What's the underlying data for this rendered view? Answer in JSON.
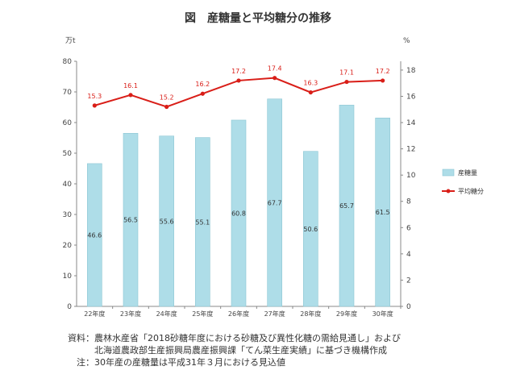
{
  "title": "図　産糖量と平均糖分の推移",
  "chart_data": {
    "type": "bar+line",
    "categories": [
      "22年度",
      "23年度",
      "24年度",
      "25年度",
      "26年度",
      "27年度",
      "28年度",
      "29年度",
      "30年度"
    ],
    "series": [
      {
        "name": "産糖量",
        "type": "bar",
        "axis": "left",
        "color": "#aedde8",
        "values": [
          46.6,
          56.5,
          55.6,
          55.1,
          60.8,
          67.7,
          50.6,
          65.7,
          61.5
        ]
      },
      {
        "name": "平均糖分",
        "type": "line",
        "axis": "right",
        "color": "#d91e18",
        "values": [
          15.3,
          16.1,
          15.2,
          16.2,
          17.2,
          17.4,
          16.3,
          17.1,
          17.2
        ]
      }
    ],
    "y_left": {
      "unit": "万t",
      "range": [
        0,
        80
      ],
      "ticks": [
        "0",
        "10",
        "20",
        "30",
        "40",
        "50",
        "60",
        "70",
        "80"
      ]
    },
    "y_right": {
      "unit": "%",
      "range": [
        0,
        18.67
      ],
      "ticks": [
        "0",
        "2",
        "4",
        "6",
        "8",
        "10",
        "12",
        "14",
        "16",
        "18"
      ]
    },
    "grid": false,
    "legend_position": "right"
  },
  "footnotes": [
    "資料：農林水産省「2018砂糖年度における砂糖及び異性化糖の需給見通し」および",
    "　　　北海道農政部生産振興局農産振興課「てん菜生産実績」に基づき機構作成",
    "　注：30年産の産糖量は平成31年３月における見込値"
  ]
}
